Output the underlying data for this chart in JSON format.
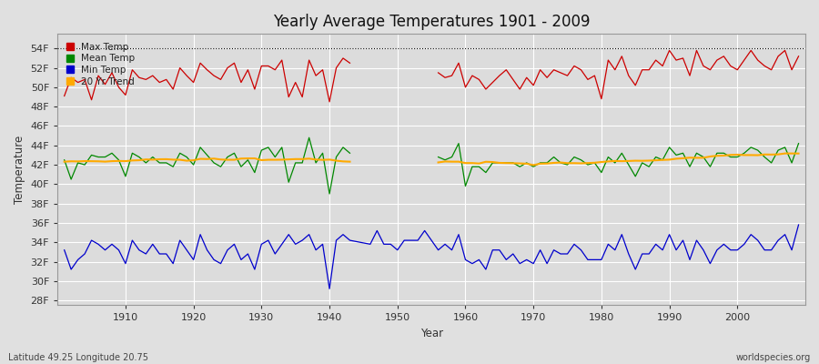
{
  "title": "Yearly Average Temperatures 1901 - 2009",
  "ylabel": "Temperature",
  "xlabel": "Year",
  "footnote_left": "Latitude 49.25 Longitude 20.75",
  "footnote_right": "worldspecies.org",
  "ylim": [
    27.5,
    55.5
  ],
  "yticks": [
    28,
    30,
    32,
    34,
    36,
    38,
    40,
    42,
    44,
    46,
    48,
    50,
    52,
    54
  ],
  "ytick_labels": [
    "28F",
    "30F",
    "32F",
    "34F",
    "36F",
    "38F",
    "40F",
    "42F",
    "44F",
    "46F",
    "48F",
    "50F",
    "52F",
    "54F"
  ],
  "xticks": [
    1910,
    1920,
    1930,
    1940,
    1950,
    1960,
    1970,
    1980,
    1990,
    2000
  ],
  "bg_color": "#e0e0e0",
  "plot_bg_color": "#dcdcdc",
  "grid_color": "#ffffff",
  "max_color": "#cc0000",
  "mean_color": "#008800",
  "min_color": "#0000cc",
  "trend_color": "#ffaa00",
  "years_max": [
    1901,
    1902,
    1903,
    1904,
    1905,
    1906,
    1907,
    1908,
    1909,
    1910,
    1911,
    1912,
    1913,
    1914,
    1915,
    1916,
    1917,
    1918,
    1919,
    1920,
    1921,
    1922,
    1923,
    1924,
    1925,
    1926,
    1927,
    1928,
    1929,
    1930,
    1931,
    1932,
    1933,
    1934,
    1935,
    1936,
    1937,
    1938,
    1939,
    1940,
    1941,
    1942,
    1943,
    1956,
    1957,
    1958,
    1959,
    1960,
    1961,
    1962,
    1963,
    1964,
    1965,
    1966,
    1967,
    1968,
    1969,
    1970,
    1971,
    1972,
    1973,
    1974,
    1975,
    1976,
    1977,
    1978,
    1979,
    1980,
    1981,
    1982,
    1983,
    1984,
    1985,
    1986,
    1987,
    1988,
    1989,
    1990,
    1991,
    1992,
    1993,
    1994,
    1995,
    1996,
    1997,
    1998,
    1999,
    2000,
    2001,
    2002,
    2003,
    2004,
    2005,
    2006,
    2007,
    2008,
    2009
  ],
  "max_temps": [
    49.1,
    51.0,
    50.5,
    50.8,
    48.7,
    51.2,
    50.3,
    51.5,
    50.0,
    49.2,
    51.8,
    51.0,
    50.8,
    51.2,
    50.5,
    50.8,
    49.8,
    52.0,
    51.2,
    50.5,
    52.5,
    51.8,
    51.2,
    50.8,
    52.0,
    52.5,
    50.5,
    51.8,
    49.8,
    52.2,
    52.2,
    51.8,
    52.8,
    49.0,
    50.5,
    49.0,
    52.8,
    51.2,
    51.8,
    48.5,
    52.0,
    53.0,
    52.5,
    51.5,
    51.0,
    51.2,
    52.5,
    50.0,
    51.2,
    50.8,
    49.8,
    50.5,
    51.2,
    51.8,
    50.8,
    49.8,
    51.0,
    50.2,
    51.8,
    51.0,
    51.8,
    51.5,
    51.2,
    52.2,
    51.8,
    50.8,
    51.2,
    48.8,
    52.8,
    51.8,
    53.2,
    51.2,
    50.2,
    51.8,
    51.8,
    52.8,
    52.2,
    53.8,
    52.8,
    53.0,
    51.2,
    53.8,
    52.2,
    51.8,
    52.8,
    53.2,
    52.2,
    51.8,
    52.8,
    53.8,
    52.8,
    52.2,
    51.8,
    53.2,
    53.8,
    51.8,
    53.2
  ],
  "years_mean": [
    1901,
    1902,
    1903,
    1904,
    1905,
    1906,
    1907,
    1908,
    1909,
    1910,
    1911,
    1912,
    1913,
    1914,
    1915,
    1916,
    1917,
    1918,
    1919,
    1920,
    1921,
    1922,
    1923,
    1924,
    1925,
    1926,
    1927,
    1928,
    1929,
    1930,
    1931,
    1932,
    1933,
    1934,
    1935,
    1936,
    1937,
    1938,
    1939,
    1940,
    1941,
    1942,
    1943,
    1956,
    1957,
    1958,
    1959,
    1960,
    1961,
    1962,
    1963,
    1964,
    1965,
    1966,
    1967,
    1968,
    1969,
    1970,
    1971,
    1972,
    1973,
    1974,
    1975,
    1976,
    1977,
    1978,
    1979,
    1980,
    1981,
    1982,
    1983,
    1984,
    1985,
    1986,
    1987,
    1988,
    1989,
    1990,
    1991,
    1992,
    1993,
    1994,
    1995,
    1996,
    1997,
    1998,
    1999,
    2000,
    2001,
    2002,
    2003,
    2004,
    2005,
    2006,
    2007,
    2008,
    2009
  ],
  "mean_temps": [
    42.5,
    40.5,
    42.2,
    42.0,
    43.0,
    42.8,
    42.8,
    43.2,
    42.5,
    40.8,
    43.2,
    42.8,
    42.2,
    42.8,
    42.2,
    42.2,
    41.8,
    43.2,
    42.8,
    42.0,
    43.8,
    43.0,
    42.2,
    41.8,
    42.8,
    43.2,
    41.8,
    42.5,
    41.2,
    43.5,
    43.8,
    42.8,
    43.8,
    40.2,
    42.2,
    42.2,
    44.8,
    42.2,
    43.2,
    39.0,
    42.8,
    43.8,
    43.2,
    42.8,
    42.5,
    42.8,
    44.2,
    39.8,
    41.8,
    41.8,
    41.2,
    42.2,
    42.2,
    42.2,
    42.2,
    41.8,
    42.2,
    41.8,
    42.2,
    42.2,
    42.8,
    42.2,
    42.0,
    42.8,
    42.5,
    42.0,
    42.2,
    41.2,
    42.8,
    42.2,
    43.2,
    42.0,
    40.8,
    42.2,
    41.8,
    42.8,
    42.5,
    43.8,
    43.0,
    43.2,
    41.8,
    43.2,
    42.8,
    41.8,
    43.2,
    43.2,
    42.8,
    42.8,
    43.2,
    43.8,
    43.5,
    42.8,
    42.2,
    43.5,
    43.8,
    42.2,
    44.2
  ],
  "years_min": [
    1901,
    1902,
    1903,
    1904,
    1905,
    1906,
    1907,
    1908,
    1909,
    1910,
    1911,
    1912,
    1913,
    1914,
    1915,
    1916,
    1917,
    1918,
    1919,
    1920,
    1921,
    1922,
    1923,
    1924,
    1925,
    1926,
    1927,
    1928,
    1929,
    1930,
    1931,
    1932,
    1933,
    1934,
    1935,
    1936,
    1937,
    1938,
    1939,
    1940,
    1941,
    1942,
    1943,
    1946,
    1947,
    1948,
    1949,
    1950,
    1951,
    1952,
    1953,
    1954,
    1955,
    1956,
    1957,
    1958,
    1959,
    1960,
    1961,
    1962,
    1963,
    1964,
    1965,
    1966,
    1967,
    1968,
    1969,
    1970,
    1971,
    1972,
    1973,
    1974,
    1975,
    1976,
    1977,
    1978,
    1979,
    1980,
    1981,
    1982,
    1983,
    1984,
    1985,
    1986,
    1987,
    1988,
    1989,
    1990,
    1991,
    1992,
    1993,
    1994,
    1995,
    1996,
    1997,
    1998,
    1999,
    2000,
    2001,
    2002,
    2003,
    2004,
    2005,
    2006,
    2007,
    2008,
    2009
  ],
  "min_temps": [
    33.2,
    31.2,
    32.2,
    32.8,
    34.2,
    33.8,
    33.2,
    33.8,
    33.2,
    31.8,
    34.2,
    33.2,
    32.8,
    33.8,
    32.8,
    32.8,
    31.8,
    34.2,
    33.2,
    32.2,
    34.8,
    33.2,
    32.2,
    31.8,
    33.2,
    33.8,
    32.2,
    32.8,
    31.2,
    33.8,
    34.2,
    32.8,
    33.8,
    34.8,
    33.8,
    34.2,
    34.8,
    33.2,
    33.8,
    29.2,
    34.2,
    34.8,
    34.2,
    33.8,
    35.2,
    33.8,
    33.8,
    33.2,
    34.2,
    34.2,
    34.2,
    35.2,
    34.2,
    33.2,
    33.8,
    33.2,
    34.8,
    32.2,
    31.8,
    32.2,
    31.2,
    33.2,
    33.2,
    32.2,
    32.8,
    31.8,
    32.2,
    31.8,
    33.2,
    31.8,
    33.2,
    32.8,
    32.8,
    33.8,
    33.2,
    32.2,
    32.2,
    32.2,
    33.8,
    33.2,
    34.8,
    32.8,
    31.2,
    32.8,
    32.8,
    33.8,
    33.2,
    34.8,
    33.2,
    34.2,
    32.2,
    34.2,
    33.2,
    31.8,
    33.2,
    33.8,
    33.2,
    33.2,
    33.8,
    34.8,
    34.2,
    33.2,
    33.2,
    34.2,
    34.8,
    33.2,
    35.8
  ],
  "years_trend": [
    1901,
    1902,
    1903,
    1904,
    1905,
    1906,
    1907,
    1908,
    1909,
    1910,
    1911,
    1912,
    1913,
    1914,
    1915,
    1916,
    1917,
    1918,
    1919,
    1920,
    1921,
    1922,
    1923,
    1924,
    1925,
    1926,
    1927,
    1928,
    1929,
    1930,
    1931,
    1932,
    1933,
    1934,
    1935,
    1936,
    1937,
    1938,
    1939,
    1940,
    1941,
    1942,
    1943,
    1956,
    1957,
    1958,
    1959,
    1960,
    1961,
    1962,
    1963,
    1964,
    1965,
    1966,
    1967,
    1968,
    1969,
    1970,
    1971,
    1972,
    1973,
    1974,
    1975,
    1976,
    1977,
    1978,
    1979,
    1980,
    1981,
    1982,
    1983,
    1984,
    1985,
    1986,
    1987,
    1988,
    1989,
    1990,
    1991,
    1992,
    1993,
    1994,
    1995,
    1996,
    1997,
    1998,
    1999,
    2000,
    2001,
    2002,
    2003,
    2004,
    2005,
    2006,
    2007,
    2008,
    2009
  ]
}
